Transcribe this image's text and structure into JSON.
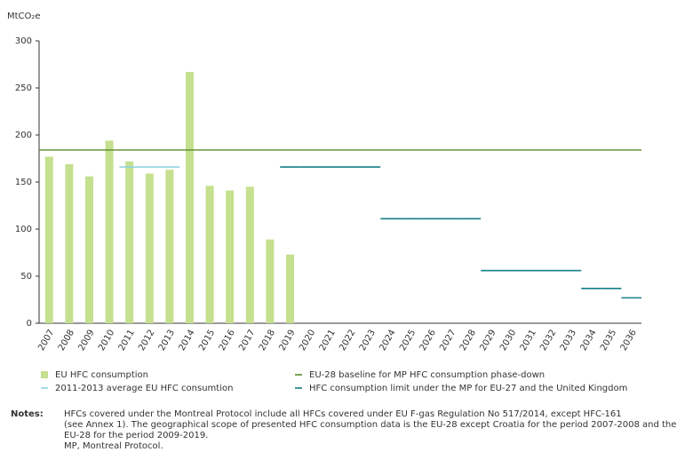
{
  "chart_data": {
    "type": "bar",
    "y_label": "MtCO₂e",
    "categories": [
      "2007",
      "2008",
      "2009",
      "2010",
      "2011",
      "2012",
      "2013",
      "2014",
      "2015",
      "2016",
      "2017",
      "2018",
      "2019",
      "2020",
      "2021",
      "2022",
      "2023",
      "2024",
      "2025",
      "2026",
      "2027",
      "2028",
      "2029",
      "2030",
      "2031",
      "2032",
      "2033",
      "2034",
      "2035",
      "2036"
    ],
    "series": [
      {
        "name": "EU HFC consumption",
        "kind": "bar",
        "color": "#c5e08e",
        "values": [
          177,
          169,
          156,
          194,
          172,
          159,
          163,
          267,
          146,
          141,
          145,
          89,
          73,
          null,
          null,
          null,
          null,
          null,
          null,
          null,
          null,
          null,
          null,
          null,
          null,
          null,
          null,
          null,
          null,
          null
        ]
      },
      {
        "name": "2011-2013 average EU HFC consumtion",
        "kind": "step",
        "color": "#8fd3e0",
        "values": [
          null,
          null,
          null,
          null,
          166,
          166,
          166,
          null,
          null,
          null,
          null,
          null,
          null,
          null,
          null,
          null,
          null,
          null,
          null,
          null,
          null,
          null,
          null,
          null,
          null,
          null,
          null,
          null,
          null,
          null
        ]
      },
      {
        "name": "EU-28 baseline for MP HFC consumption phase-down",
        "kind": "hline",
        "color": "#5a8a2a",
        "value": 184
      },
      {
        "name": "HFC consumption limit under the MP for EU-27 and the United Kingdom",
        "kind": "step",
        "color": "#157f86",
        "values": [
          null,
          null,
          null,
          null,
          null,
          null,
          null,
          null,
          null,
          null,
          null,
          null,
          166,
          166,
          166,
          166,
          166,
          111,
          111,
          111,
          111,
          111,
          56,
          56,
          56,
          56,
          56,
          37,
          37,
          27
        ]
      }
    ],
    "ylim": [
      0,
      300
    ],
    "yticks": [
      0,
      50,
      100,
      150,
      200,
      250,
      300
    ]
  },
  "notes": {
    "label": "Notes:",
    "lines": [
      "HFCs covered under the Montreal Protocol include all HFCs covered under EU F-gas Regulation No 517/2014, except HFC-161",
      "(see Annex 1). The geographical scope of presented HFC consumption data is the EU-28 except Croatia for the period 2007-2008 and the",
      "EU-28 for the period 2009-2019.",
      "MP, Montreal Protocol."
    ]
  }
}
